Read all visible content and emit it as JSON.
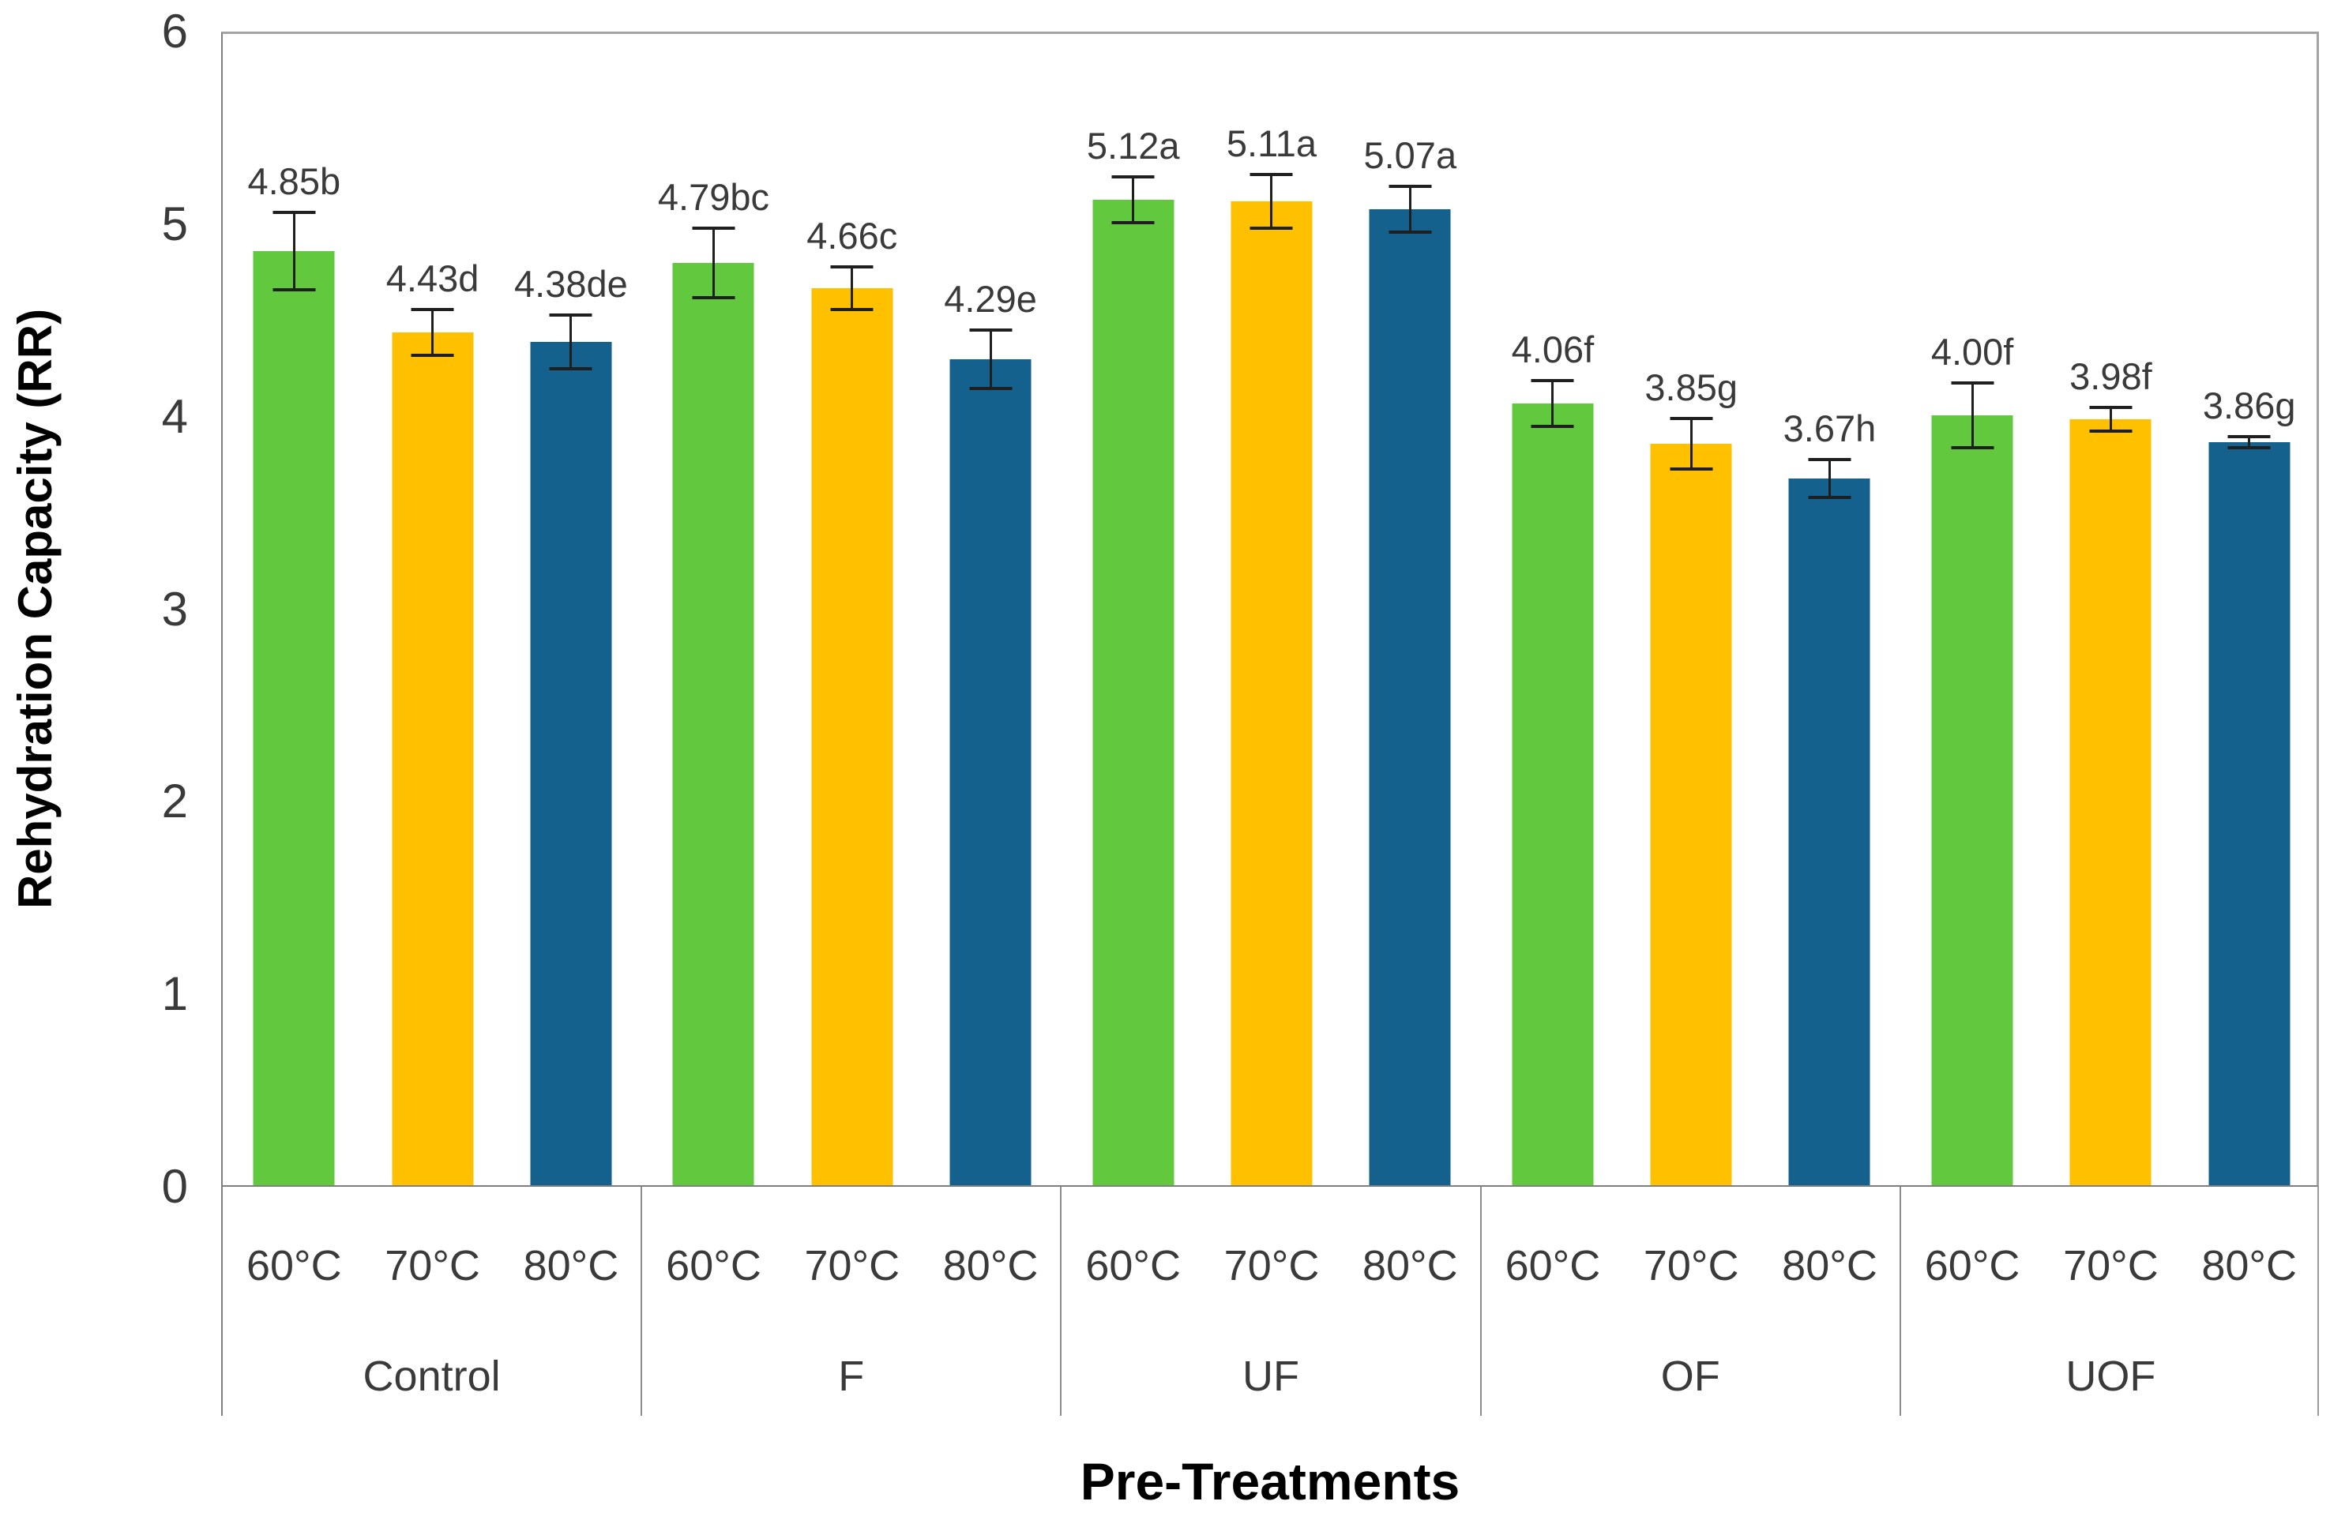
{
  "chart_data": {
    "type": "bar",
    "title": "",
    "xlabel": "Pre-Treatments",
    "ylabel": "Rehydration Capacity (RR)",
    "ylim": [
      0,
      6
    ],
    "yticks": [
      0,
      1,
      2,
      3,
      4,
      5,
      6
    ],
    "grid": "none",
    "legend": "none",
    "error_bars": true,
    "categories": [
      "Control",
      "F",
      "UF",
      "OF",
      "UOF"
    ],
    "sub_categories": [
      "60°C",
      "70°C",
      "80°C"
    ],
    "series": [
      {
        "name": "60°C",
        "color": "#62C83E",
        "values": [
          4.85,
          4.79,
          5.12,
          4.06,
          4.0
        ],
        "point_labels": [
          "4.85b",
          "4.79bc",
          "5.12a",
          "4.06f",
          "4.00f"
        ],
        "errors": [
          0.2,
          0.18,
          0.12,
          0.12,
          0.17
        ]
      },
      {
        "name": "70°C",
        "color": "#FFC000",
        "values": [
          4.43,
          4.66,
          5.11,
          3.85,
          3.98
        ],
        "point_labels": [
          "4.43d",
          "4.66c",
          "5.11a",
          "3.85g",
          "3.98f"
        ],
        "errors": [
          0.12,
          0.11,
          0.14,
          0.13,
          0.06
        ]
      },
      {
        "name": "80°C",
        "color": "#15618E",
        "values": [
          4.38,
          4.29,
          5.07,
          3.67,
          3.86
        ],
        "point_labels": [
          "4.38de",
          "4.29e",
          "5.07a",
          "3.67h",
          "3.86g"
        ],
        "errors": [
          0.14,
          0.15,
          0.12,
          0.1,
          0.03
        ]
      }
    ]
  }
}
